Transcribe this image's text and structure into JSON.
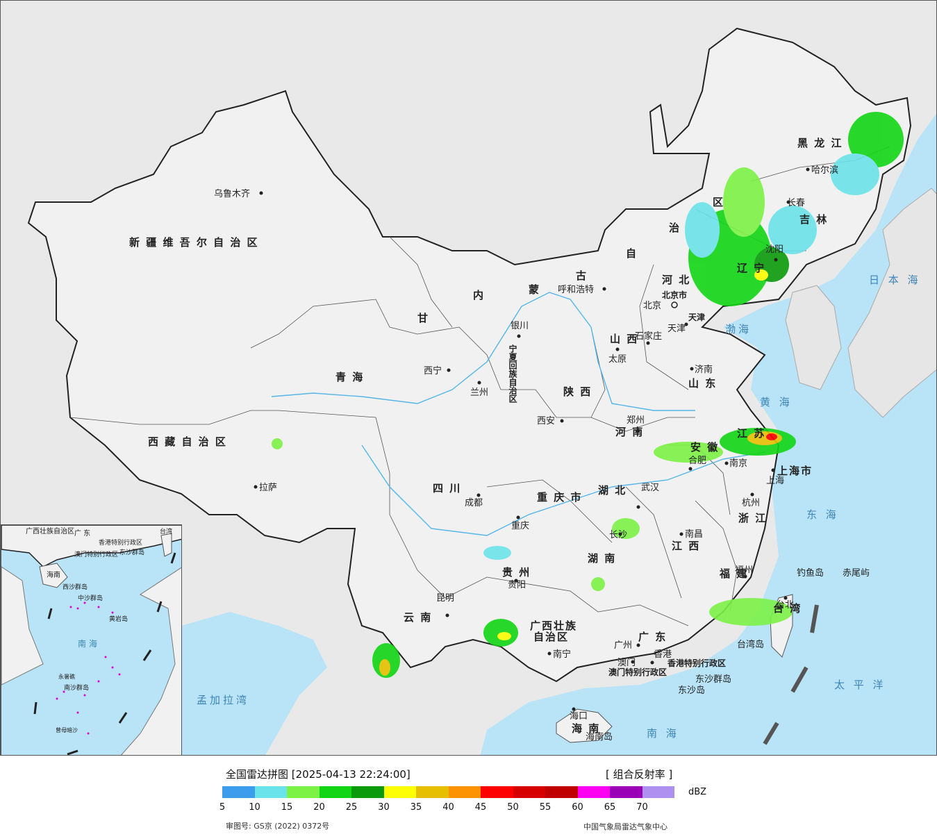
{
  "legend": {
    "title": "全国雷达拼图 [2025-04-13 22:24:00]",
    "product": "[ 组合反射率 ]",
    "unit": "dBZ",
    "ticks": [
      "5",
      "10",
      "15",
      "20",
      "25",
      "30",
      "35",
      "40",
      "45",
      "50",
      "55",
      "60",
      "65",
      "70"
    ],
    "colors": [
      "#3c9dec",
      "#6be3ea",
      "#7cf146",
      "#12d615",
      "#0b9a0b",
      "#fdfd03",
      "#e6c000",
      "#fb9303",
      "#fd0000",
      "#d70000",
      "#c00000",
      "#fe00f1",
      "#9a00b5",
      "#ad90f0"
    ],
    "review_no": "审图号: GS京 (2022) 0372号",
    "producer": "中国气象局雷达气象中心"
  },
  "regions": {
    "xinjiang": "新 疆 维 吾 尔 自 治 区",
    "xizang": "西 藏 自 治 区",
    "qinghai": "青 海",
    "gansu": "甘",
    "neimenggu": [
      "内",
      "蒙",
      "古",
      "自",
      "治",
      "区"
    ],
    "heilongjiang": "黑 龙 江",
    "jilin": "吉 林",
    "liaoning": "辽 宁",
    "hebei": "河 北",
    "shanxi": "山 西",
    "shandong": "山 东",
    "henan": "河 南",
    "shaanxi": "陕 西",
    "ningxia": "宁夏回族自治区",
    "sichuan": "四 川",
    "chongqing": "重 庆 市",
    "hubei": "湖 北",
    "hunan": "湖 南",
    "anhui": "安 徽",
    "jiangsu": "江 苏",
    "zhejiang": "浙 江",
    "jiangxi": "江 西",
    "fujian": "福 建",
    "guizhou": "贵 州",
    "yunnan": "云 南",
    "guangxi1": "广西壮族",
    "guangxi2": "自治区",
    "guangdong": "广 东",
    "hainan": "海 南",
    "taiwan": "台 湾",
    "shanghai": "上海市",
    "beijing": "北京市",
    "tianjin": "天津",
    "hk": "香港特别行政区",
    "macau": "澳门特别行政区"
  },
  "cities": {
    "urumqi": "乌鲁木齐",
    "lhasa": "拉萨",
    "xining": "西宁",
    "lanzhou": "兰州",
    "yinchuan": "银川",
    "hohhot": "呼和浩特",
    "beijing": "北京",
    "tianjin": "天津",
    "shijiazhuang": "石家庄",
    "taiyuan": "太原",
    "jinan": "济南",
    "zhengzhou": "郑州",
    "xian": "西安",
    "chengdu": "成都",
    "chongqing": "重庆",
    "wuhan": "武汉",
    "hefei": "合肥",
    "nanjing": "南京",
    "shanghai": "上海",
    "hangzhou": "杭州",
    "changsha": "长沙",
    "nanchang": "南昌",
    "fuzhou": "福州",
    "guiyang": "贵阳",
    "kunming": "昆明",
    "nanning": "南宁",
    "guangzhou": "广州",
    "hongkong": "香港",
    "macau": "澳门",
    "haikou": "海口",
    "taibei": "台北",
    "harbin": "哈尔滨",
    "changchun": "长春",
    "shenyang": "沈阳"
  },
  "seas": {
    "bohai": "渤海",
    "huanghai": "黄 海",
    "donghai": "东 海",
    "nanhai": "南 海",
    "taipingyang": "太 平 洋",
    "ribenhai": "日 本 海",
    "mengjiala": "孟加拉湾"
  },
  "islands": {
    "diaoyu": "钓鱼岛",
    "chiwei": "赤尾屿",
    "taiwan_dao": "台湾岛",
    "dongsha_qundao": "东沙群岛",
    "dongsha_dao": "东沙岛",
    "hainan_dao": "海南岛"
  },
  "inset": {
    "guangxi": "广西壮族自治区",
    "guangdong": "广 东",
    "hk": "香港特别行政区",
    "macau": "澳门特别行政区",
    "taiwan": "台湾",
    "dongsha": "东沙群岛",
    "hainan": "海南",
    "xisha": "西沙群岛",
    "zhongsha": "中沙群岛",
    "huangyan": "黄岩岛",
    "nanhai": "南 海",
    "nansha": "南沙群岛",
    "yongshu": "永暑礁",
    "zengmu": "曾母暗沙"
  }
}
